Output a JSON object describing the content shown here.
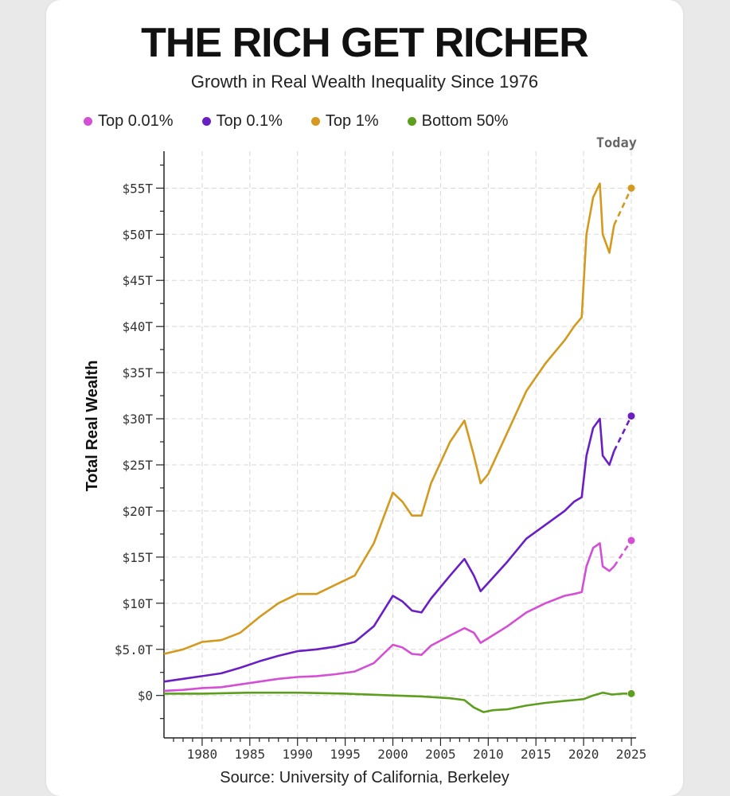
{
  "title": "THE RICH GET RICHER",
  "subtitle": "Growth in Real Wealth Inequality Since 1976",
  "source": "Source: University of California, Berkeley",
  "today_label": "Today",
  "legend": [
    {
      "label": "Top 0.01%",
      "color": "#d44fd4"
    },
    {
      "label": "Top 0.1%",
      "color": "#6a1fc4"
    },
    {
      "label": "Top 1%",
      "color": "#d39a1f"
    },
    {
      "label": "Bottom 50%",
      "color": "#5e9e1e"
    }
  ],
  "chart_data": {
    "type": "line",
    "title": "THE RICH GET RICHER",
    "subtitle": "Growth in Real Wealth Inequality Since 1976",
    "xlabel": "",
    "ylabel": "Total Real Wealth",
    "xlim": [
      1976,
      2025.5
    ],
    "ylim": [
      -4.6,
      59
    ],
    "x_ticks": [
      1980,
      1985,
      1990,
      1995,
      2000,
      2005,
      2010,
      2015,
      2020,
      2025
    ],
    "y_ticks": [
      0,
      5,
      10,
      15,
      20,
      25,
      30,
      35,
      40,
      45,
      50,
      55
    ],
    "y_tick_labels": [
      "$0",
      "$5.0T",
      "$10T",
      "$15T",
      "$20T",
      "$25T",
      "$30T",
      "$35T",
      "$40T",
      "$45T",
      "$50T",
      "$55T"
    ],
    "grid": true,
    "legend_position": "top",
    "series": [
      {
        "name": "Top 1%",
        "color": "#d39a1f",
        "x": [
          1976,
          1978,
          1980,
          1982,
          1984,
          1986,
          1988,
          1990,
          1992,
          1994,
          1996,
          1998,
          2000,
          2001,
          2002,
          2003,
          2004,
          2006,
          2007.5,
          2008.5,
          2009.2,
          2010,
          2012,
          2014,
          2016,
          2018,
          2019,
          2019.8,
          2020.3,
          2021,
          2021.7,
          2022,
          2022.7,
          2023.2
        ],
        "y": [
          4.5,
          5,
          5.8,
          6,
          6.8,
          8.5,
          10,
          11,
          11,
          12,
          13,
          16.5,
          22,
          21,
          19.5,
          19.5,
          23,
          27.5,
          29.8,
          26,
          23,
          24,
          28.5,
          33,
          36,
          38.5,
          40,
          41,
          50,
          54,
          55.5,
          50,
          48,
          51
        ]
      },
      {
        "name": "Top 0.1%",
        "color": "#6a1fc4",
        "x": [
          1976,
          1978,
          1980,
          1982,
          1984,
          1986,
          1988,
          1990,
          1992,
          1994,
          1996,
          1998,
          2000,
          2001,
          2002,
          2003,
          2004,
          2006,
          2007.5,
          2008.5,
          2009.2,
          2010,
          2012,
          2014,
          2016,
          2018,
          2019,
          2019.8,
          2020.3,
          2021,
          2021.7,
          2022,
          2022.7,
          2023.2
        ],
        "y": [
          1.5,
          1.8,
          2.1,
          2.4,
          3,
          3.7,
          4.3,
          4.8,
          5,
          5.3,
          5.8,
          7.5,
          10.8,
          10.2,
          9.2,
          9,
          10.5,
          13,
          14.8,
          13,
          11.3,
          12.2,
          14.5,
          17,
          18.5,
          20,
          21,
          21.5,
          26,
          29,
          30,
          26,
          25,
          26.5
        ]
      },
      {
        "name": "Top 0.01%",
        "color": "#d44fd4",
        "x": [
          1976,
          1978,
          1980,
          1982,
          1984,
          1986,
          1988,
          1990,
          1992,
          1994,
          1996,
          1998,
          2000,
          2001,
          2002,
          2003,
          2004,
          2006,
          2007.5,
          2008.5,
          2009.2,
          2010,
          2012,
          2014,
          2016,
          2018,
          2019,
          2019.8,
          2020.3,
          2021,
          2021.7,
          2022,
          2022.7,
          2023.2
        ],
        "y": [
          0.5,
          0.6,
          0.8,
          0.9,
          1.2,
          1.5,
          1.8,
          2,
          2.1,
          2.3,
          2.6,
          3.5,
          5.5,
          5.2,
          4.5,
          4.4,
          5.4,
          6.5,
          7.3,
          6.8,
          5.7,
          6.2,
          7.5,
          9,
          10,
          10.8,
          11,
          11.2,
          14,
          16,
          16.5,
          14,
          13.5,
          14
        ]
      },
      {
        "name": "Bottom 50%",
        "color": "#5e9e1e",
        "x": [
          1976,
          1980,
          1985,
          1990,
          1995,
          2000,
          2003,
          2006,
          2007.5,
          2008.5,
          2009.5,
          2010.5,
          2012,
          2014,
          2016,
          2018,
          2019,
          2020,
          2021,
          2022,
          2023,
          2024
        ],
        "y": [
          0.2,
          0.2,
          0.3,
          0.3,
          0.2,
          0,
          -0.1,
          -0.3,
          -0.5,
          -1.3,
          -1.8,
          -1.6,
          -1.5,
          -1.1,
          -0.8,
          -0.6,
          -0.5,
          -0.4,
          0,
          0.3,
          0.1,
          0.2
        ]
      }
    ],
    "projections": [
      {
        "name": "Top 1%",
        "x": [
          2023.2,
          2025
        ],
        "y": [
          51,
          55
        ]
      },
      {
        "name": "Top 0.1%",
        "x": [
          2023.2,
          2025
        ],
        "y": [
          26.5,
          30.3
        ]
      },
      {
        "name": "Top 0.01%",
        "x": [
          2023.2,
          2025
        ],
        "y": [
          14,
          16.8
        ]
      },
      {
        "name": "Bottom 50%",
        "x": [
          2024,
          2025
        ],
        "y": [
          0.2,
          0.2
        ]
      }
    ]
  }
}
